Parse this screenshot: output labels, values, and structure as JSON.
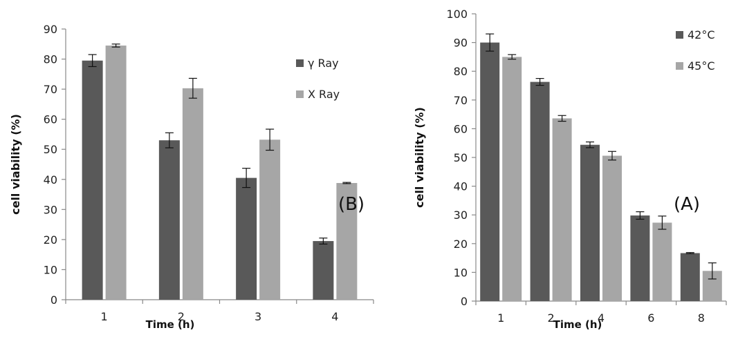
{
  "colors": {
    "series1": "#595959",
    "series2": "#a6a6a6",
    "axis": "#888888",
    "err": "#111111"
  },
  "chart_data": [
    {
      "type": "bar",
      "panel_label": "(B)",
      "xlabel": "Time (h)",
      "ylabel": "cell viability (%)",
      "ylim": [
        0,
        90
      ],
      "ytick_step": 10,
      "categories": [
        "1",
        "2",
        "3",
        "4"
      ],
      "legend_placement": "upper-right",
      "series": [
        {
          "name": "γ Ray",
          "values": [
            79.5,
            53.0,
            40.5,
            19.5
          ],
          "errors": [
            2.0,
            2.5,
            3.2,
            1.0
          ]
        },
        {
          "name": "X Ray",
          "values": [
            84.5,
            70.3,
            53.2,
            38.8
          ],
          "errors": [
            0.5,
            3.3,
            3.5,
            0.2
          ]
        }
      ]
    },
    {
      "type": "bar",
      "panel_label": "(A)",
      "xlabel": "Time (h)",
      "ylabel": "cell viability (%)",
      "ylim": [
        0,
        100
      ],
      "ytick_step": 10,
      "categories": [
        "1",
        "2",
        "4",
        "6",
        "8"
      ],
      "legend_placement": "upper-right",
      "series": [
        {
          "name": "42°C",
          "values": [
            90.0,
            76.3,
            54.4,
            29.8,
            16.7
          ],
          "errors": [
            3.0,
            1.2,
            1.0,
            1.3,
            0.2
          ]
        },
        {
          "name": "45°C",
          "values": [
            85.0,
            63.6,
            50.6,
            27.3,
            10.5
          ],
          "errors": [
            0.8,
            1.0,
            1.5,
            2.3,
            2.8
          ]
        }
      ]
    }
  ]
}
